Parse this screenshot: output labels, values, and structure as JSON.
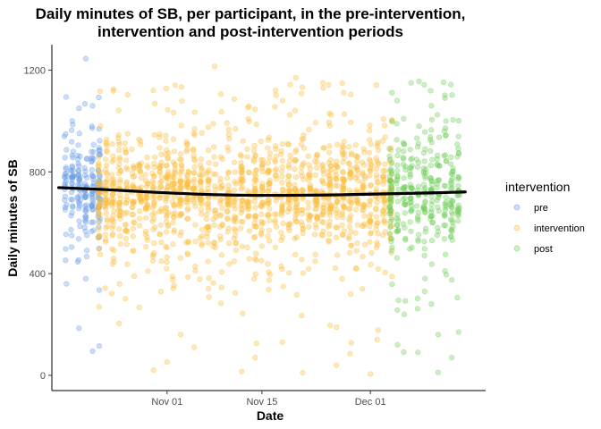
{
  "chart_data": {
    "type": "scatter",
    "title_lines": [
      "Daily minutes of SB, per participant, in the pre-intervention,",
      "intervention and post-intervention periods"
    ],
    "xlabel": "Date",
    "ylabel": "Daily minutes of SB",
    "x_axis": {
      "type": "date",
      "range": [
        "2023-10-15",
        "2023-12-18"
      ],
      "ticks": [
        {
          "value": "2023-11-01",
          "label": "Nov 01"
        },
        {
          "value": "2023-11-15",
          "label": "Nov 15"
        },
        {
          "value": "2023-12-01",
          "label": "Dec 01"
        }
      ]
    },
    "y_axis": {
      "range": [
        -60,
        1300
      ],
      "ticks": [
        0,
        400,
        800,
        1200
      ]
    },
    "grid": false,
    "legend": {
      "title": "intervention",
      "position": "right",
      "entries": [
        {
          "name": "pre",
          "color": "#6a9de8"
        },
        {
          "name": "intervention",
          "color": "#fbbe3b"
        },
        {
          "name": "post",
          "color": "#6fcf5a"
        }
      ]
    },
    "series": [
      {
        "name": "pre",
        "color": "#6a9de8",
        "x_range": [
          "2023-10-17",
          "2023-10-22"
        ],
        "center": 745,
        "spread": 120,
        "count": 210,
        "outliers": [
          {
            "x": "2023-10-20",
            "y": 1245
          },
          {
            "x": "2023-10-19",
            "y": 1050
          },
          {
            "x": "2023-10-21",
            "y": 1060
          },
          {
            "x": "2023-10-18",
            "y": 1000
          },
          {
            "x": "2023-10-19",
            "y": 185
          },
          {
            "x": "2023-10-22",
            "y": 115
          },
          {
            "x": "2023-10-21",
            "y": 95
          },
          {
            "x": "2023-10-22",
            "y": 335
          },
          {
            "x": "2023-10-20",
            "y": 380
          }
        ]
      },
      {
        "name": "intervention",
        "color": "#fbbe3b",
        "x_range": [
          "2023-10-22",
          "2023-12-04"
        ],
        "center": 715,
        "spread": 140,
        "count": 1450,
        "outliers": [
          {
            "x": "2023-11-08",
            "y": 1215
          },
          {
            "x": "2023-11-17",
            "y": 1120
          },
          {
            "x": "2023-11-20",
            "y": 1170
          },
          {
            "x": "2023-11-24",
            "y": 1150
          },
          {
            "x": "2023-10-30",
            "y": 20
          },
          {
            "x": "2023-11-12",
            "y": 15
          },
          {
            "x": "2023-11-21",
            "y": 10
          },
          {
            "x": "2023-12-01",
            "y": 5
          },
          {
            "x": "2023-11-26",
            "y": 40
          },
          {
            "x": "2023-11-18",
            "y": 130
          },
          {
            "x": "2023-11-05",
            "y": 110
          },
          {
            "x": "2023-11-28",
            "y": 85
          },
          {
            "x": "2023-11-14",
            "y": 70
          },
          {
            "x": "2023-11-03",
            "y": 160
          },
          {
            "x": "2023-12-02",
            "y": 140
          }
        ]
      },
      {
        "name": "post",
        "color": "#6fcf5a",
        "x_range": [
          "2023-12-04",
          "2023-12-14"
        ],
        "center": 720,
        "spread": 140,
        "count": 330,
        "outliers": [
          {
            "x": "2023-12-07",
            "y": 1150
          },
          {
            "x": "2023-12-12",
            "y": 1090
          },
          {
            "x": "2023-12-10",
            "y": 1060
          },
          {
            "x": "2023-12-06",
            "y": 240
          },
          {
            "x": "2023-12-09",
            "y": 330
          },
          {
            "x": "2023-12-11",
            "y": 160
          },
          {
            "x": "2023-12-13",
            "y": 70
          },
          {
            "x": "2023-12-08",
            "y": 90
          },
          {
            "x": "2023-12-05",
            "y": 120
          },
          {
            "x": "2023-12-14",
            "y": 170
          },
          {
            "x": "2023-12-12",
            "y": 410
          },
          {
            "x": "2023-12-10",
            "y": 280
          }
        ]
      }
    ],
    "trend": {
      "color": "#000000",
      "points": [
        {
          "x": "2023-10-16",
          "y": 738
        },
        {
          "x": "2023-10-23",
          "y": 730
        },
        {
          "x": "2023-10-30",
          "y": 720
        },
        {
          "x": "2023-11-06",
          "y": 712
        },
        {
          "x": "2023-11-13",
          "y": 708
        },
        {
          "x": "2023-11-20",
          "y": 708
        },
        {
          "x": "2023-11-27",
          "y": 710
        },
        {
          "x": "2023-12-04",
          "y": 714
        },
        {
          "x": "2023-12-11",
          "y": 718
        },
        {
          "x": "2023-12-15",
          "y": 721
        }
      ]
    }
  }
}
